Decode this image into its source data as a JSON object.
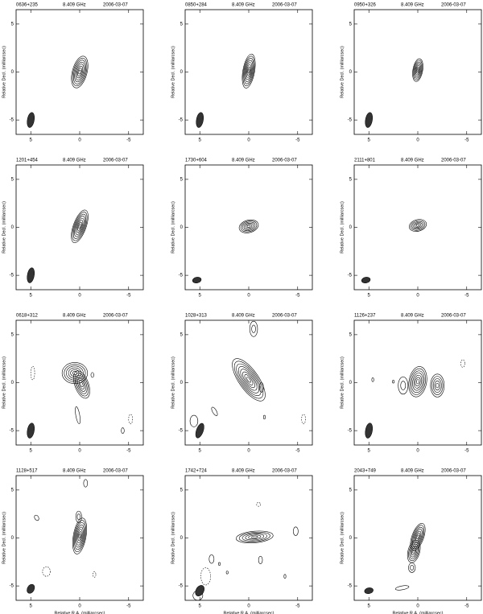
{
  "chart_data": [
    {
      "type": "contour",
      "title": "0636+235",
      "frequency": "8.409 GHz",
      "date": "2006-03-07",
      "ylabel": "Relative Decl. (milliarcsec)",
      "xlim": [
        6.5,
        -6.5
      ],
      "ylim": [
        -6.5,
        6.5
      ],
      "xticks": [
        5,
        0,
        -5
      ],
      "yticks": [
        -5,
        0,
        5
      ]
    },
    {
      "type": "contour",
      "title": "0850+284",
      "frequency": "8.409 GHz",
      "date": "2006-03-07",
      "ylabel": "Relative Decl. (milliarcsec)",
      "xlim": [
        6.5,
        -6.5
      ],
      "ylim": [
        -6.5,
        6.5
      ],
      "xticks": [
        5,
        0,
        -5
      ],
      "yticks": [
        -5,
        0,
        5
      ]
    },
    {
      "type": "contour",
      "title": "0950+326",
      "frequency": "8.409 GHz",
      "date": "2006-03-07",
      "ylabel": "Relative Decl. (milliarcsec)",
      "xlim": [
        6.5,
        -6.5
      ],
      "ylim": [
        -6.5,
        6.5
      ],
      "xticks": [
        5,
        0,
        -5
      ],
      "yticks": [
        -5,
        0,
        5
      ]
    },
    {
      "type": "contour",
      "title": "1201+454",
      "frequency": "8.409 GHz",
      "date": "2006-03-07",
      "ylabel": "Relative Decl. (milliarcsec)",
      "xlim": [
        6.5,
        -6.5
      ],
      "ylim": [
        -6.5,
        6.5
      ],
      "xticks": [
        5,
        0,
        -5
      ],
      "yticks": [
        -5,
        0,
        5
      ]
    },
    {
      "type": "contour",
      "title": "1730+604",
      "frequency": "8.409 GHz",
      "date": "2006-03-07",
      "ylabel": "Relative Decl. (milliarcsec)",
      "xlim": [
        6.5,
        -6.5
      ],
      "ylim": [
        -6.5,
        6.5
      ],
      "xticks": [
        5,
        0,
        -5
      ],
      "yticks": [
        -5,
        0,
        5
      ]
    },
    {
      "type": "contour",
      "title": "2111+801",
      "frequency": "8.409 GHz",
      "date": "2006-03-07",
      "ylabel": "Relative Decl. (milliarcsec)",
      "xlim": [
        6.5,
        -6.5
      ],
      "ylim": [
        -6.5,
        6.5
      ],
      "xticks": [
        5,
        0,
        -5
      ],
      "yticks": [
        -5,
        0,
        5
      ]
    },
    {
      "type": "contour",
      "title": "0618+312",
      "frequency": "8.409 GHz",
      "date": "2006-03-07",
      "ylabel": "Relative Decl. (milliarcsec)",
      "xlim": [
        6.5,
        -6.5
      ],
      "ylim": [
        -6.5,
        6.5
      ],
      "xticks": [
        5,
        0,
        -5
      ],
      "yticks": [
        -5,
        0,
        5
      ]
    },
    {
      "type": "contour",
      "title": "1028+313",
      "frequency": "8.409 GHz",
      "date": "2006-03-07",
      "ylabel": "Relative Decl. (milliarcsec)",
      "xlim": [
        6.5,
        -6.5
      ],
      "ylim": [
        -6.5,
        6.5
      ],
      "xticks": [
        5,
        0,
        -5
      ],
      "yticks": [
        -5,
        0,
        5
      ]
    },
    {
      "type": "contour",
      "title": "1126+237",
      "frequency": "8.409 GHz",
      "date": "2006-03-07",
      "ylabel": "Relative Decl. (milliarcsec)",
      "xlim": [
        6.5,
        -6.5
      ],
      "ylim": [
        -6.5,
        6.5
      ],
      "xticks": [
        5,
        0,
        -5
      ],
      "yticks": [
        -5,
        0,
        5
      ]
    },
    {
      "type": "contour",
      "title": "1128+517",
      "frequency": "8.409 GHz",
      "date": "2006-03-07",
      "ylabel": "Relative Decl. (milliarcsec)",
      "xlabel": "Relative R.A. (milliarcsec)",
      "xlim": [
        6.5,
        -6.5
      ],
      "ylim": [
        -6.5,
        6.5
      ],
      "xticks": [
        5,
        0,
        -5
      ],
      "yticks": [
        -5,
        0,
        5
      ]
    },
    {
      "type": "contour",
      "title": "1742+724",
      "frequency": "8.409 GHz",
      "date": "2006-03-07",
      "ylabel": "Relative Decl. (milliarcsec)",
      "xlabel": "Relative R.A. (milliarcsec)",
      "xlim": [
        6.5,
        -6.5
      ],
      "ylim": [
        -6.5,
        6.5
      ],
      "xticks": [
        5,
        0,
        -5
      ],
      "yticks": [
        -5,
        0,
        5
      ]
    },
    {
      "type": "contour",
      "title": "2043+749",
      "frequency": "8.409 GHz",
      "date": "2006-03-07",
      "ylabel": "Relative Decl. (milliarcsec)",
      "xlabel": "Relative R.A. (milliarcsec)",
      "xlim": [
        6.5,
        -6.5
      ],
      "ylim": [
        -6.5,
        6.5
      ],
      "xticks": [
        5,
        0,
        -5
      ],
      "yticks": [
        -5,
        0,
        5
      ]
    }
  ]
}
